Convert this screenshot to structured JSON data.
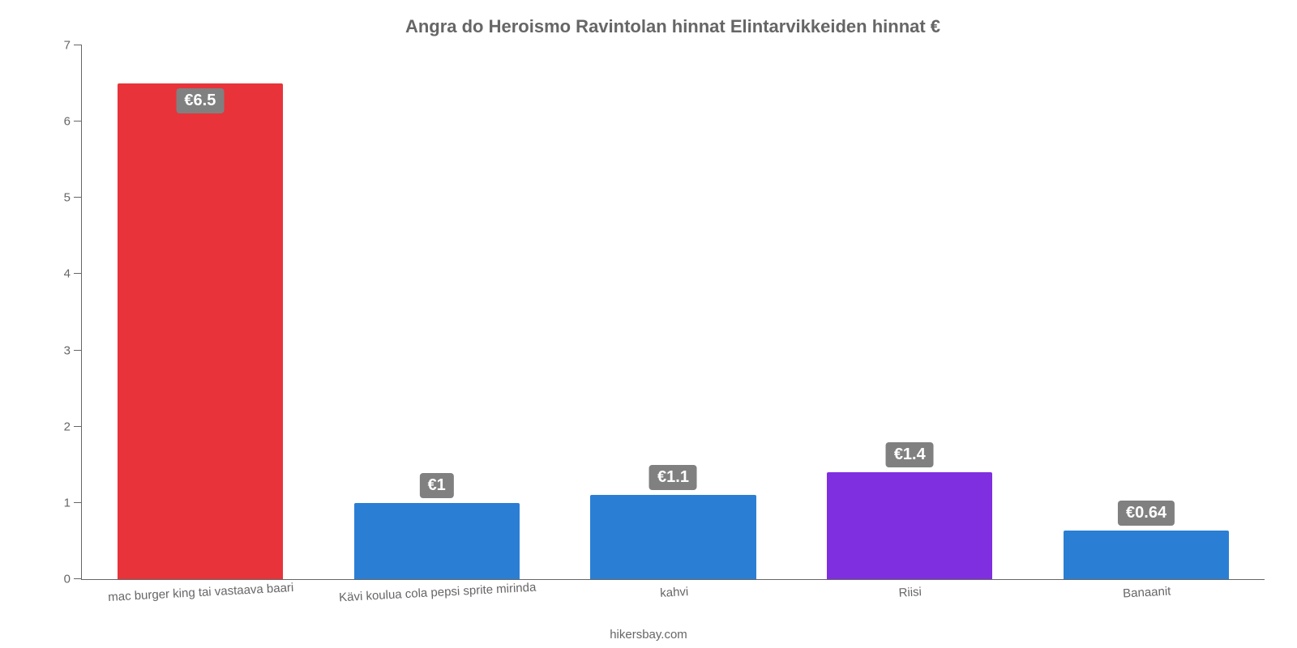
{
  "chart": {
    "type": "bar",
    "title": "Angra do Heroismo Ravintolan hinnat Elintarvikkeiden hinnat €",
    "title_fontsize": 22,
    "title_color": "#666666",
    "background_color": "#ffffff",
    "axis_color": "#666666",
    "tick_label_color": "#666666",
    "tick_label_fontsize": 15,
    "ylim_min": 0,
    "ylim_max": 7,
    "ytick_step": 1,
    "yticks": [
      0,
      1,
      2,
      3,
      4,
      5,
      6,
      7
    ],
    "bar_width_pct": 70,
    "value_label_fontsize": 20,
    "value_label_bg": "#808080",
    "value_label_text_color": "#ffffff",
    "x_label_rotation_deg": -3,
    "credit": "hikersbay.com",
    "categories": [
      "mac burger king tai vastaava baari",
      "Kävi koulua cola pepsi sprite mirinda",
      "kahvi",
      "Riisi",
      "Banaanit"
    ],
    "values": [
      6.5,
      1,
      1.1,
      1.4,
      0.64
    ],
    "value_labels": [
      "€6.5",
      "€1",
      "€1.1",
      "€1.4",
      "€0.64"
    ],
    "bar_colors": [
      "#e8333a",
      "#2a7fd4",
      "#2a7fd4",
      "#7f2ee0",
      "#2a7fd4"
    ],
    "label_positions": [
      "inside",
      "above",
      "above",
      "above",
      "above"
    ]
  }
}
